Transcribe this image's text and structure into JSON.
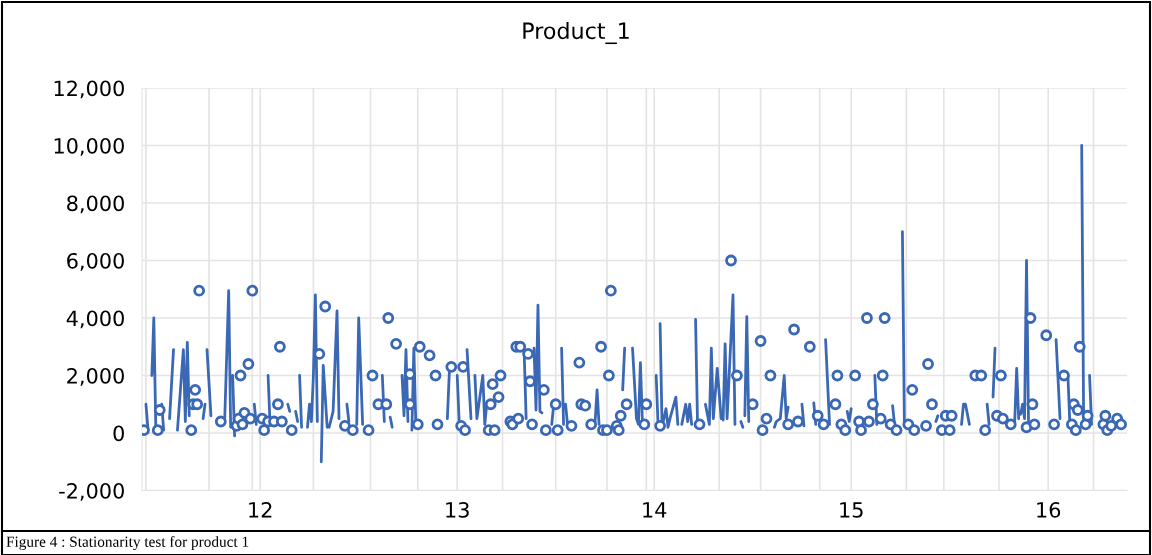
{
  "chart_data": {
    "type": "line",
    "title": "Product_1",
    "annotations": [
      "Figure 4 : Stationarity test for product 1"
    ],
    "xlim": [
      11.4,
      16.4
    ],
    "xticks": [
      {
        "value": 11.42,
        "label": null
      },
      {
        "value": 11.74,
        "label": null
      },
      {
        "value": 11.96,
        "label": null
      },
      12,
      {
        "value": 12.27,
        "label": null
      },
      {
        "value": 12.56,
        "label": null
      },
      {
        "value": 12.8,
        "label": null
      },
      13,
      {
        "value": 13.23,
        "label": null
      },
      {
        "value": 13.5,
        "label": null
      },
      {
        "value": 13.76,
        "label": null
      },
      {
        "value": 13.96,
        "label": null
      },
      14,
      {
        "value": 14.33,
        "label": null
      },
      {
        "value": 14.54,
        "label": null
      },
      {
        "value": 14.84,
        "label": null
      },
      15,
      {
        "value": 15.28,
        "label": null
      },
      {
        "value": 15.47,
        "label": null
      },
      {
        "value": 15.75,
        "label": null
      },
      16,
      {
        "value": 16.23,
        "label": null
      }
    ],
    "ylim": [
      -2000,
      12000
    ],
    "yticks": [
      {
        "value": -2000,
        "label": "-2,000"
      },
      0,
      {
        "value": 2000,
        "label": "2,000"
      },
      {
        "value": 4000,
        "label": "4,000"
      },
      {
        "value": 6000,
        "label": "6,000"
      },
      {
        "value": 8000,
        "label": "8,000"
      },
      {
        "value": 10000,
        "label": "10,000"
      },
      {
        "value": 12000,
        "label": "12,000"
      }
    ],
    "grid": true,
    "series": [
      {
        "color": "#3a68b4",
        "x": [
          11.42,
          11.43,
          null,
          11.45,
          11.46,
          11.47,
          null,
          11.5,
          11.51,
          null,
          11.54,
          11.56,
          null,
          11.58,
          11.61,
          11.62,
          11.63,
          11.64,
          null,
          11.71,
          11.72,
          null,
          11.73,
          11.75,
          null,
          11.82,
          11.84,
          11.85,
          null,
          11.86,
          11.87,
          null,
          11.97,
          11.98,
          null,
          12.04,
          12.05,
          null,
          12.14,
          12.15,
          null,
          12.18,
          12.19,
          null,
          12.2,
          12.21,
          null,
          12.24,
          12.25,
          12.26,
          12.27,
          12.28,
          12.29,
          null,
          12.31,
          12.32,
          12.34,
          null,
          12.35,
          12.37,
          12.39,
          12.4,
          null,
          12.44,
          12.45,
          null,
          12.49,
          12.5,
          12.52,
          null,
          12.62,
          12.63,
          null,
          12.66,
          12.67,
          null,
          12.72,
          12.73,
          12.74,
          12.75,
          null,
          12.77,
          12.78,
          12.79,
          null,
          12.95,
          12.96,
          null,
          13.0,
          13.01,
          null,
          13.05,
          13.07,
          null,
          13.09,
          13.1,
          13.11,
          13.13,
          13.14,
          13.15,
          null,
          13.34,
          13.35,
          null,
          13.39,
          13.4,
          13.41,
          13.42,
          13.43,
          null,
          13.48,
          13.49,
          null,
          13.53,
          13.54,
          null,
          13.55,
          13.56,
          null,
          13.7,
          13.71,
          13.72,
          null,
          13.84,
          13.85,
          null,
          13.89,
          13.91,
          13.92,
          13.93,
          13.94,
          null,
          14.01,
          14.02,
          null,
          14.03,
          14.04,
          14.06,
          14.07,
          14.08,
          14.11,
          14.12,
          null,
          14.14,
          14.16,
          14.17,
          14.18,
          14.19,
          null,
          14.21,
          14.22,
          null,
          14.26,
          14.28,
          14.29,
          14.3,
          14.32,
          14.34,
          null,
          14.35,
          14.36,
          14.37,
          14.4,
          14.41,
          null,
          14.44,
          14.45,
          null,
          14.46,
          14.47,
          14.48,
          null,
          14.61,
          14.62,
          14.64,
          14.66,
          14.67,
          14.68,
          null,
          14.75,
          14.76,
          null,
          14.81,
          14.82,
          null,
          14.87,
          14.89,
          null,
          14.98,
          14.99,
          15.0,
          null,
          15.12,
          15.13,
          null,
          15.21,
          15.22,
          null,
          15.26,
          15.27,
          null,
          15.43,
          15.44,
          null,
          15.56,
          15.57,
          15.58,
          15.6,
          null,
          15.69,
          15.7,
          null,
          15.72,
          15.73,
          null,
          15.83,
          15.84,
          15.85,
          null,
          15.86,
          15.87,
          15.88,
          15.89,
          15.9,
          null,
          16.04,
          16.06,
          null,
          16.1,
          16.11,
          null,
          16.17,
          16.18,
          null,
          16.21,
          16.22
        ],
        "values": [
          1000,
          150,
          null,
          2000,
          4000,
          200,
          null,
          1000,
          100,
          null,
          500,
          2900,
          null,
          100,
          2900,
          400,
          3150,
          600,
          null,
          500,
          1000,
          null,
          2900,
          600,
          null,
          500,
          4950,
          200,
          null,
          2000,
          -100,
          null,
          1000,
          300,
          null,
          2000,
          300,
          null,
          1000,
          750,
          null,
          750,
          400,
          null,
          2000,
          200,
          null,
          200,
          1000,
          400,
          2000,
          4800,
          400,
          null,
          -1000,
          2350,
          200,
          null,
          200,
          750,
          4250,
          500,
          null,
          1000,
          400,
          null,
          300,
          4000,
          300,
          null,
          2000,
          400,
          null,
          550,
          200,
          null,
          2000,
          600,
          2900,
          400,
          null,
          100,
          2950,
          300,
          null,
          500,
          2100,
          null,
          2000,
          400,
          null,
          2900,
          500,
          null,
          2000,
          500,
          1000,
          2000,
          300,
          1000,
          null,
          2800,
          500,
          null,
          2950,
          800,
          4450,
          750,
          700,
          null,
          300,
          1000,
          null,
          2950,
          300,
          null,
          1000,
          300,
          null,
          400,
          1500,
          300,
          null,
          1500,
          2950,
          null,
          2950,
          500,
          300,
          2450,
          400,
          null,
          2000,
          200,
          null,
          3800,
          200,
          850,
          200,
          500,
          1250,
          300,
          null,
          300,
          1000,
          400,
          1000,
          300,
          null,
          3950,
          300,
          null,
          1000,
          300,
          2950,
          500,
          2250,
          500,
          null,
          450,
          3100,
          500,
          4800,
          300,
          null,
          400,
          200,
          null,
          600,
          4050,
          400,
          null,
          200,
          400,
          500,
          2000,
          500,
          900,
          null,
          1000,
          250,
          null,
          1050,
          300,
          null,
          3250,
          300,
          null,
          750,
          400,
          850,
          null,
          2000,
          300,
          null,
          950,
          300,
          null,
          7000,
          300,
          null,
          400,
          600,
          null,
          300,
          1000,
          1000,
          300,
          null,
          1000,
          300,
          null,
          1250,
          2950,
          null,
          400,
          2250,
          500,
          null,
          650,
          1000,
          500,
          6000,
          400,
          null,
          3250,
          500,
          null,
          2000,
          300,
          null,
          10000,
          300,
          null,
          2000,
          300
        ]
      },
      {
        "type": "scatter",
        "color": "#3a68b4",
        "marker": "circle",
        "x": [
          11.41,
          11.48,
          11.49,
          11.65,
          11.66,
          11.67,
          11.68,
          11.69,
          11.8,
          11.88,
          11.89,
          11.9,
          11.91,
          11.92,
          11.94,
          11.95,
          11.96,
          12.01,
          12.02,
          12.04,
          12.07,
          12.09,
          12.1,
          12.11,
          12.16,
          12.3,
          12.33,
          12.43,
          12.47,
          12.55,
          12.57,
          12.6,
          12.64,
          12.65,
          12.69,
          12.76,
          12.76,
          12.8,
          12.81,
          12.86,
          12.89,
          12.9,
          12.97,
          13.02,
          13.03,
          13.04,
          13.16,
          13.17,
          13.18,
          13.19,
          13.21,
          13.22,
          13.27,
          13.28,
          13.3,
          13.31,
          13.32,
          13.36,
          13.37,
          13.38,
          13.44,
          13.45,
          13.5,
          13.51,
          13.58,
          13.62,
          13.63,
          13.65,
          13.68,
          13.73,
          13.74,
          13.76,
          13.77,
          13.78,
          13.81,
          13.82,
          13.83,
          13.86,
          13.95,
          13.96,
          14.03,
          14.23,
          14.39,
          14.42,
          14.5,
          14.54,
          14.55,
          14.57,
          14.59,
          14.68,
          14.71,
          14.73,
          14.79,
          14.83,
          14.86,
          14.92,
          14.93,
          14.95,
          14.97,
          15.02,
          15.04,
          15.05,
          15.08,
          15.09,
          15.11,
          15.15,
          15.16,
          15.17,
          15.2,
          15.23,
          15.29,
          15.31,
          15.32,
          15.38,
          15.39,
          15.41,
          15.46,
          15.48,
          15.5,
          15.51,
          15.63,
          15.66,
          15.68,
          15.74,
          15.76,
          15.77,
          15.81,
          15.89,
          15.91,
          15.92,
          15.93,
          15.99,
          16.03,
          16.08,
          16.12,
          16.13,
          16.14,
          16.15,
          16.16,
          16.19,
          16.2,
          16.28,
          16.29,
          16.3,
          16.32,
          16.35,
          16.37
        ],
        "values": [
          100,
          100,
          800,
          100,
          1000,
          1500,
          1000,
          4950,
          400,
          250,
          500,
          2000,
          300,
          700,
          2400,
          500,
          4950,
          500,
          100,
          400,
          400,
          1000,
          3000,
          400,
          100,
          2750,
          4400,
          250,
          100,
          100,
          2000,
          1000,
          1000,
          4000,
          3100,
          2050,
          1000,
          300,
          3000,
          2700,
          2000,
          300,
          2300,
          250,
          2300,
          100,
          100,
          1000,
          1700,
          100,
          1250,
          2000,
          400,
          300,
          3000,
          500,
          3000,
          2750,
          1800,
          300,
          1500,
          100,
          1000,
          100,
          250,
          2450,
          1000,
          950,
          300,
          3000,
          100,
          100,
          2000,
          4950,
          250,
          100,
          600,
          1000,
          300,
          1000,
          250,
          300,
          6000,
          2000,
          1000,
          3200,
          100,
          500,
          2000,
          300,
          3600,
          400,
          3000,
          600,
          300,
          1000,
          2000,
          300,
          100,
          2000,
          400,
          100,
          4000,
          400,
          1000,
          500,
          2000,
          4000,
          300,
          100,
          300,
          1500,
          100,
          250,
          2400,
          1000,
          100,
          600,
          100,
          600,
          2000,
          2000,
          100,
          600,
          2000,
          500,
          300,
          200,
          4000,
          1000,
          300,
          3400,
          300,
          2000,
          300,
          1000,
          100,
          800,
          3000,
          300,
          600,
          300,
          600,
          100,
          250,
          500,
          300
        ]
      }
    ]
  }
}
